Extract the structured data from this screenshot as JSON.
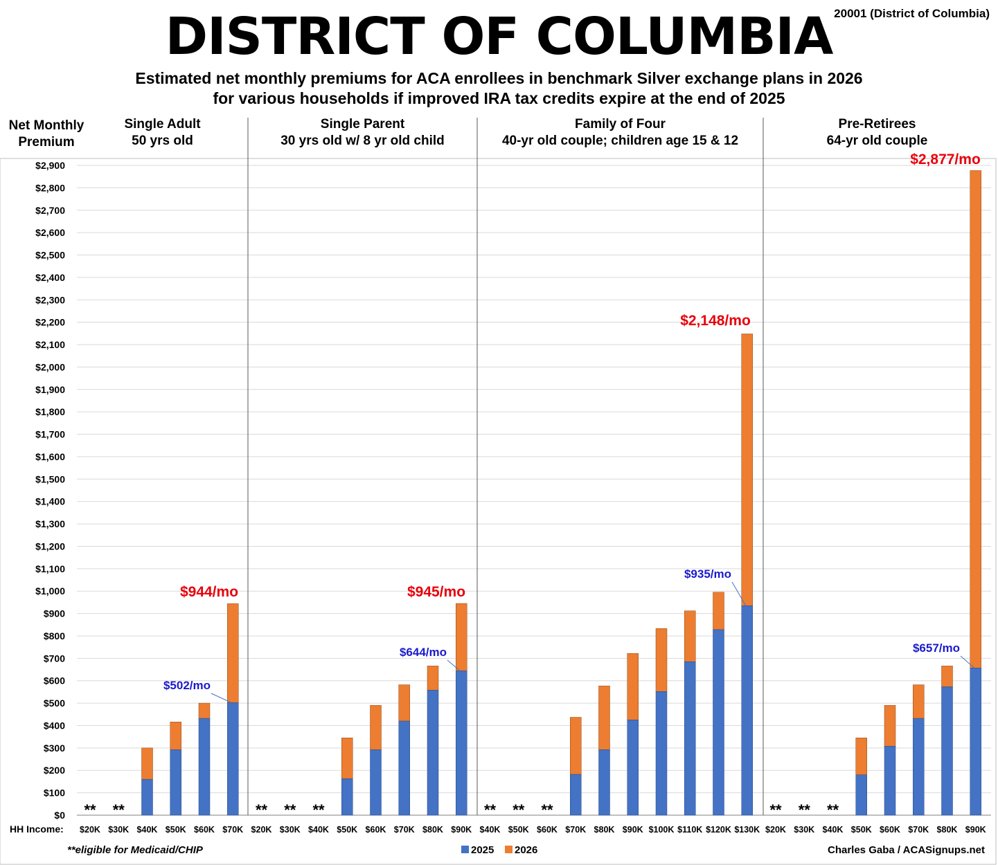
{
  "title": "DISTRICT OF COLUMBIA",
  "zip_label": "20001 (District of Columbia)",
  "subtitle_line1": "Estimated net monthly premiums for ACA enrollees in benchmark Silver exchange plans in 2026",
  "subtitle_line2": "for various households if improved IRA tax credits expire at the end of 2025",
  "footnote": "**eligible for Medicaid/CHIP",
  "credit": "Charles Gaba / ACASignups.net",
  "colors": {
    "y2025": "#4472C4",
    "y2026": "#ED7D31",
    "red_label": "#E8000B",
    "blue_label": "#1A1ACC",
    "grid": "#D9D9D9"
  },
  "chart_data": {
    "type": "bar",
    "stacked": true,
    "ylabel": "Net Monthly Premium",
    "xlabel": "HH Income:",
    "ylim": [
      0,
      2900
    ],
    "yticks": [
      "$0",
      "$100",
      "$200",
      "$300",
      "$400",
      "$500",
      "$600",
      "$700",
      "$800",
      "$900",
      "$1,000",
      "$1,100",
      "$1,200",
      "$1,300",
      "$1,400",
      "$1,500",
      "$1,600",
      "$1,700",
      "$1,800",
      "$1,900",
      "$2,000",
      "$2,100",
      "$2,200",
      "$2,300",
      "$2,400",
      "$2,500",
      "$2,600",
      "$2,700",
      "$2,800",
      "$2,900"
    ],
    "grid": true,
    "legend": {
      "position": "bottom",
      "items": [
        "2025",
        "2026"
      ]
    },
    "medicaid_marker": "**",
    "panels": [
      {
        "title_line1": "Single Adult",
        "title_line2": "50 yrs old",
        "categories": [
          "$20K",
          "$30K",
          "$40K",
          "$50K",
          "$60K",
          "$70K"
        ],
        "values_2025": [
          null,
          null,
          160,
          292,
          432,
          502
        ],
        "values_2026": [
          null,
          null,
          300,
          416,
          500,
          944
        ],
        "label_2025": "$502/mo",
        "label_2026": "$944/mo"
      },
      {
        "title_line1": "Single Parent",
        "title_line2": "30 yrs old w/ 8 yr old child",
        "categories": [
          "$20K",
          "$30K",
          "$40K",
          "$50K",
          "$60K",
          "$70K",
          "$80K",
          "$90K"
        ],
        "values_2025": [
          null,
          null,
          null,
          163,
          292,
          420,
          558,
          644
        ],
        "values_2026": [
          null,
          null,
          null,
          345,
          490,
          582,
          666,
          945
        ],
        "label_2025": "$644/mo",
        "label_2026": "$945/mo"
      },
      {
        "title_line1": "Family of Four",
        "title_line2": "40-yr old couple; children age 15 & 12",
        "categories": [
          "$40K",
          "$50K",
          "$60K",
          "$70K",
          "$80K",
          "$90K",
          "$100K",
          "$110K",
          "$120K",
          "$130K"
        ],
        "values_2025": [
          null,
          null,
          null,
          182,
          292,
          425,
          552,
          685,
          828,
          935
        ],
        "values_2026": [
          null,
          null,
          null,
          437,
          577,
          722,
          833,
          912,
          995,
          2148
        ],
        "label_2025": "$935/mo",
        "label_2026": "$2,148/mo"
      },
      {
        "title_line1": "Pre-Retirees",
        "title_line2": "64-yr old couple",
        "categories": [
          "$20K",
          "$30K",
          "$40K",
          "$50K",
          "$60K",
          "$70K",
          "$80K",
          "$90K"
        ],
        "values_2025": [
          null,
          null,
          null,
          180,
          308,
          432,
          573,
          657
        ],
        "values_2026": [
          null,
          null,
          null,
          345,
          490,
          582,
          666,
          2877
        ],
        "label_2025": "$657/mo",
        "label_2026": "$2,877/mo"
      }
    ]
  }
}
